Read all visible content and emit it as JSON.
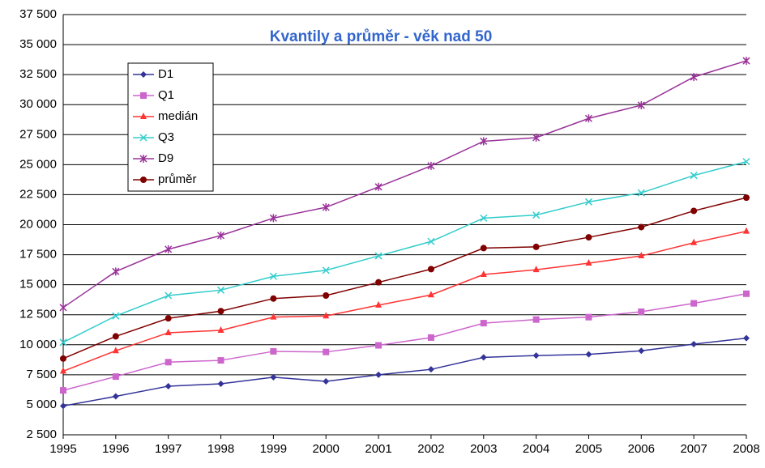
{
  "chart_data": {
    "type": "line",
    "title": "Kvantily a průměr - věk nad 50",
    "title_color": "#3366cc",
    "categories": [
      "1995",
      "1996",
      "1997",
      "1998",
      "1999",
      "2000",
      "2001",
      "2002",
      "2003",
      "2004",
      "2005",
      "2006",
      "2007",
      "2008"
    ],
    "series": [
      {
        "name": "D1",
        "color": "#333399",
        "marker": "diamond",
        "values": [
          4900,
          5700,
          6550,
          6750,
          7300,
          6950,
          7500,
          7950,
          8950,
          9100,
          9200,
          9500,
          10050,
          10550
        ]
      },
      {
        "name": "Q1",
        "color": "#cc66cc",
        "marker": "square",
        "values": [
          6200,
          7350,
          8550,
          8700,
          9450,
          9400,
          9950,
          10600,
          11800,
          12100,
          12300,
          12750,
          13450,
          14250
        ]
      },
      {
        "name": "medián",
        "color": "#ff3333",
        "marker": "triangle",
        "values": [
          7800,
          9500,
          11000,
          11200,
          12300,
          12400,
          13300,
          14150,
          15850,
          16250,
          16800,
          17400,
          18500,
          19450
        ]
      },
      {
        "name": "Q3",
        "color": "#33cccc",
        "marker": "x",
        "values": [
          10200,
          12400,
          14100,
          14550,
          15700,
          16200,
          17400,
          18600,
          20550,
          20800,
          21900,
          22650,
          24100,
          25250
        ]
      },
      {
        "name": "D9",
        "color": "#993399",
        "marker": "star",
        "values": [
          13100,
          16100,
          17950,
          19100,
          20550,
          21450,
          23150,
          24900,
          26950,
          27250,
          28850,
          29950,
          32300,
          33650
        ]
      },
      {
        "name": "průměr",
        "color": "#800000",
        "marker": "circle",
        "values": [
          8850,
          10700,
          12200,
          12800,
          13850,
          14100,
          15200,
          16300,
          18050,
          18150,
          18950,
          19800,
          21150,
          22250
        ]
      }
    ],
    "ylim": [
      2500,
      37500
    ],
    "yticks": [
      {
        "value": 2500,
        "label": "2 500"
      },
      {
        "value": 5000,
        "label": "5 000"
      },
      {
        "value": 7500,
        "label": "7 500"
      },
      {
        "value": 10000,
        "label": "10 000"
      },
      {
        "value": 12500,
        "label": "12 500"
      },
      {
        "value": 15000,
        "label": "15 000"
      },
      {
        "value": 17500,
        "label": "17 500"
      },
      {
        "value": 20000,
        "label": "20 000"
      },
      {
        "value": 22500,
        "label": "22 500"
      },
      {
        "value": 25000,
        "label": "25 000"
      },
      {
        "value": 27500,
        "label": "27 500"
      },
      {
        "value": 30000,
        "label": "30 000"
      },
      {
        "value": 32500,
        "label": "32 500"
      },
      {
        "value": 35000,
        "label": "35 000"
      },
      {
        "value": 37500,
        "label": "37 500"
      }
    ],
    "grid": true,
    "legend": "upper left"
  }
}
